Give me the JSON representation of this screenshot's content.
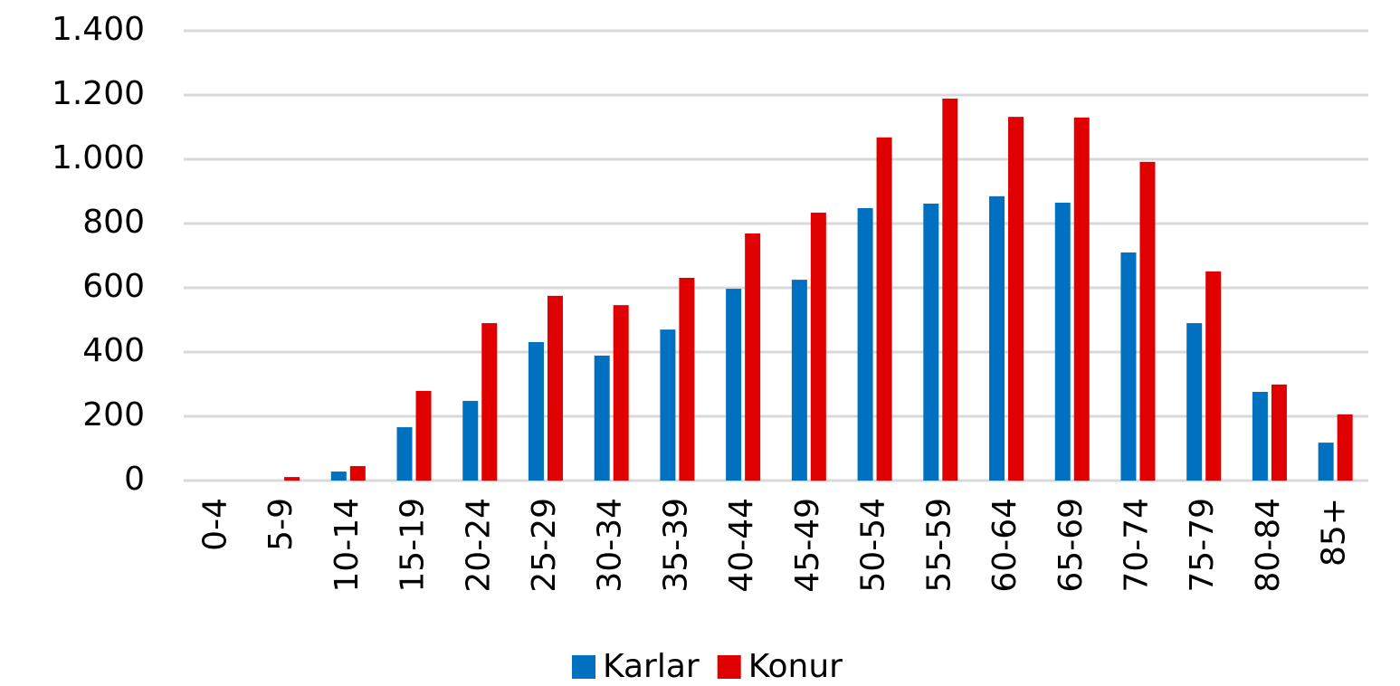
{
  "chart_data": {
    "type": "bar",
    "categories": [
      "0-4",
      "5-9",
      "10-14",
      "15-19",
      "20-24",
      "25-29",
      "30-34",
      "35-39",
      "40-44",
      "45-49",
      "50-54",
      "55-59",
      "60-64",
      "65-69",
      "70-74",
      "75-79",
      "80-84",
      "85+"
    ],
    "series": [
      {
        "name": "Karlar",
        "color": "#0070c0",
        "values": [
          0,
          0,
          28,
          166,
          248,
          431,
          389,
          470,
          597,
          625,
          848,
          862,
          885,
          865,
          710,
          490,
          276,
          118
        ]
      },
      {
        "name": "Konur",
        "color": "#e00000",
        "values": [
          0,
          11,
          45,
          279,
          490,
          575,
          546,
          631,
          769,
          834,
          1068,
          1189,
          1132,
          1130,
          992,
          651,
          299,
          206
        ]
      }
    ],
    "ylim": [
      0,
      1400
    ],
    "yticks": [
      0,
      200,
      400,
      600,
      800,
      {
        "value": 1000,
        "label": "1.000"
      },
      {
        "value": 1200,
        "label": "1.200"
      },
      {
        "value": 1400,
        "label": "1.400"
      }
    ],
    "grid": true,
    "legend": "bottom"
  }
}
